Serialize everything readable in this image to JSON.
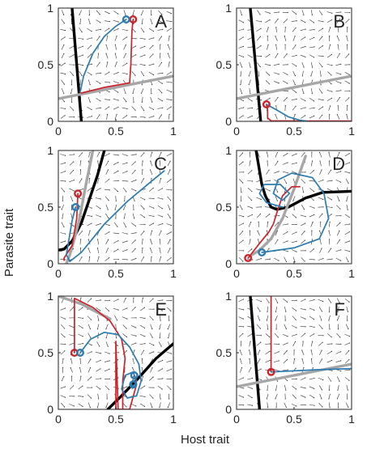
{
  "figure": {
    "xlabel": "Host trait",
    "ylabel": "Parasite trait"
  },
  "colors": {
    "host_isocline": "#000000",
    "parasite_isocline": "#a6a6a6",
    "red_trajectory": "#cc2229",
    "blue_trajectory": "#2a7bb0",
    "arrows": "#333333",
    "frame": "#222222"
  },
  "chart_data": [
    {
      "type": "line",
      "panel": "A",
      "xlim": [
        0,
        1
      ],
      "ylim": [
        0,
        1
      ],
      "xticks": [
        0,
        0.5,
        1
      ],
      "yticks": [
        0,
        0.5,
        1
      ],
      "xtick_labels": [
        "0",
        "0.5",
        "1"
      ],
      "ytick_labels": [
        "0",
        "0.5",
        "1"
      ],
      "show_xticks": true,
      "show_yticks": true,
      "grid": false,
      "field": [
        {
          "x": 0.05,
          "y": 0.05,
          "dx": 0.6,
          "dy": 0.8
        },
        {
          "x": 0.5,
          "y": 0.5,
          "dx": -1,
          "dy": 0.3
        },
        {
          "x": 0.85,
          "y": 0.85,
          "dx": -1,
          "dy": 0.0
        }
      ],
      "curves": [
        {
          "role": "host_isocline",
          "points": [
            [
              0.12,
              1.0
            ],
            [
              0.2,
              0.0
            ]
          ]
        },
        {
          "role": "parasite_isocline",
          "points": [
            [
              0.0,
              0.2
            ],
            [
              1.0,
              0.4
            ]
          ]
        },
        {
          "role": "red_trajectory",
          "points": [
            [
              0.65,
              0.9
            ],
            [
              0.64,
              0.8
            ],
            [
              0.63,
              0.5
            ],
            [
              0.62,
              0.34
            ],
            [
              0.4,
              0.3
            ],
            [
              0.2,
              0.25
            ]
          ]
        },
        {
          "role": "blue_trajectory",
          "points": [
            [
              0.59,
              0.9
            ],
            [
              0.5,
              0.84
            ],
            [
              0.4,
              0.75
            ],
            [
              0.3,
              0.6
            ],
            [
              0.22,
              0.4
            ],
            [
              0.19,
              0.26
            ]
          ]
        }
      ],
      "start_points": [
        {
          "role": "red_trajectory",
          "x": 0.65,
          "y": 0.9
        },
        {
          "role": "blue_trajectory",
          "x": 0.59,
          "y": 0.9
        }
      ]
    },
    {
      "type": "line",
      "panel": "B",
      "xlim": [
        0,
        1
      ],
      "ylim": [
        0,
        1
      ],
      "xticks": [
        0,
        0.5,
        1
      ],
      "yticks": [
        0,
        0.5,
        1
      ],
      "xtick_labels": [
        "0",
        "0.5",
        "1"
      ],
      "ytick_labels": [
        "0",
        "0.5",
        "1"
      ],
      "show_xticks": true,
      "show_yticks": true,
      "grid": false,
      "curves": [
        {
          "role": "host_isocline",
          "points": [
            [
              0.12,
              1.0
            ],
            [
              0.21,
              0.0
            ]
          ]
        },
        {
          "role": "parasite_isocline",
          "points": [
            [
              0.0,
              0.2
            ],
            [
              1.0,
              0.4
            ]
          ]
        },
        {
          "role": "red_trajectory",
          "points": [
            [
              0.26,
              0.15
            ],
            [
              0.27,
              0.1
            ],
            [
              0.27,
              0.03
            ],
            [
              0.3,
              0.005
            ],
            [
              0.6,
              0.003
            ],
            [
              1.0,
              0.003
            ]
          ]
        },
        {
          "role": "blue_trajectory",
          "points": [
            [
              0.26,
              0.15
            ],
            [
              0.35,
              0.1
            ],
            [
              0.45,
              0.04
            ],
            [
              0.55,
              0.01
            ],
            [
              0.62,
              0.0
            ]
          ]
        }
      ],
      "start_points": [
        {
          "role": "red_trajectory",
          "x": 0.26,
          "y": 0.15
        }
      ]
    },
    {
      "type": "line",
      "panel": "C",
      "xlim": [
        0,
        1
      ],
      "ylim": [
        0,
        1
      ],
      "xticks": [
        0,
        0.5,
        1
      ],
      "yticks": [
        0,
        0.5,
        1
      ],
      "xtick_labels": [
        "0",
        "0.5",
        "1"
      ],
      "ytick_labels": [
        "0",
        "0.5",
        "1"
      ],
      "show_xticks": true,
      "show_yticks": true,
      "grid": false,
      "curves": [
        {
          "role": "host_isocline",
          "points": [
            [
              0.0,
              0.12
            ],
            [
              0.05,
              0.13
            ],
            [
              0.12,
              0.2
            ],
            [
              0.2,
              0.36
            ],
            [
              0.28,
              0.6
            ],
            [
              0.34,
              0.78
            ],
            [
              0.4,
              1.0
            ]
          ]
        },
        {
          "role": "parasite_isocline",
          "points": [
            [
              0.07,
              0.0
            ],
            [
              0.1,
              0.08
            ],
            [
              0.14,
              0.22
            ],
            [
              0.18,
              0.38
            ],
            [
              0.24,
              0.7
            ],
            [
              0.28,
              0.9
            ],
            [
              0.3,
              1.0
            ]
          ]
        },
        {
          "role": "red_trajectory",
          "points": [
            [
              0.17,
              0.62
            ],
            [
              0.16,
              0.4
            ],
            [
              0.12,
              0.16
            ],
            [
              0.05,
              0.05
            ],
            [
              0.05,
              0.03
            ]
          ]
        },
        {
          "role": "blue_trajectory",
          "points": [
            [
              0.15,
              0.5
            ],
            [
              0.12,
              0.38
            ],
            [
              0.09,
              0.2
            ],
            [
              0.07,
              0.08
            ],
            [
              0.1,
              0.02
            ],
            [
              0.2,
              0.1
            ],
            [
              0.4,
              0.35
            ],
            [
              0.6,
              0.55
            ],
            [
              0.8,
              0.72
            ],
            [
              0.92,
              0.82
            ]
          ]
        }
      ],
      "start_points": [
        {
          "role": "red_trajectory",
          "x": 0.17,
          "y": 0.62
        },
        {
          "role": "blue_trajectory",
          "x": 0.15,
          "y": 0.5
        }
      ]
    },
    {
      "type": "line",
      "panel": "D",
      "xlim": [
        0,
        1
      ],
      "ylim": [
        0,
        1
      ],
      "xticks": [
        0,
        0.5,
        1
      ],
      "yticks": [
        0,
        0.5,
        1
      ],
      "xtick_labels": [
        "0",
        "0.5",
        "1"
      ],
      "ytick_labels": [
        "0",
        "0.5",
        "1"
      ],
      "show_xticks": true,
      "show_yticks": true,
      "grid": false,
      "curves": [
        {
          "role": "host_isocline",
          "points": [
            [
              0.17,
              1.0
            ],
            [
              0.22,
              0.7
            ],
            [
              0.25,
              0.6
            ],
            [
              0.3,
              0.5
            ],
            [
              0.35,
              0.48
            ],
            [
              0.45,
              0.5
            ],
            [
              0.6,
              0.58
            ],
            [
              0.75,
              0.63
            ],
            [
              1.0,
              0.64
            ]
          ]
        },
        {
          "role": "parasite_isocline",
          "points": [
            [
              0.12,
              0.07
            ],
            [
              0.2,
              0.12
            ],
            [
              0.3,
              0.22
            ],
            [
              0.4,
              0.4
            ],
            [
              0.5,
              0.66
            ],
            [
              0.6,
              0.95
            ]
          ]
        },
        {
          "role": "red_trajectory",
          "points": [
            [
              0.1,
              0.05
            ],
            [
              0.2,
              0.18
            ],
            [
              0.28,
              0.28
            ],
            [
              0.32,
              0.35
            ],
            [
              0.35,
              0.45
            ],
            [
              0.4,
              0.6
            ],
            [
              0.48,
              0.68
            ],
            [
              0.55,
              0.68
            ]
          ]
        },
        {
          "role": "blue_trajectory",
          "points": [
            [
              0.22,
              0.1
            ],
            [
              0.5,
              0.14
            ],
            [
              0.72,
              0.22
            ],
            [
              0.8,
              0.4
            ],
            [
              0.76,
              0.62
            ],
            [
              0.66,
              0.76
            ],
            [
              0.48,
              0.8
            ],
            [
              0.36,
              0.74
            ],
            [
              0.32,
              0.62
            ],
            [
              0.4,
              0.56
            ],
            [
              0.46,
              0.62
            ],
            [
              0.38,
              0.7
            ],
            [
              0.24,
              0.7
            ],
            [
              0.2,
              0.62
            ],
            [
              0.26,
              0.54
            ],
            [
              0.4,
              0.5
            ]
          ]
        }
      ],
      "start_points": [
        {
          "role": "red_trajectory",
          "x": 0.1,
          "y": 0.05
        },
        {
          "role": "blue_trajectory",
          "x": 0.22,
          "y": 0.1
        }
      ]
    },
    {
      "type": "line",
      "panel": "E",
      "xlim": [
        0,
        1
      ],
      "ylim": [
        0,
        1
      ],
      "xticks": [
        0,
        0.5,
        1
      ],
      "yticks": [
        0,
        0.5,
        1
      ],
      "xtick_labels": [
        "0",
        "0.5",
        "1"
      ],
      "ytick_labels": [
        "0",
        "0.5",
        "1"
      ],
      "show_xticks": true,
      "show_yticks": true,
      "grid": false,
      "curves": [
        {
          "role": "host_isocline",
          "points": [
            [
              0.43,
              0.0
            ],
            [
              0.55,
              0.12
            ],
            [
              0.7,
              0.28
            ],
            [
              0.85,
              0.45
            ],
            [
              1.0,
              0.58
            ]
          ]
        },
        {
          "role": "parasite_isocline",
          "points": [
            [
              0.0,
              1.0
            ],
            [
              0.2,
              0.93
            ],
            [
              0.35,
              0.85
            ],
            [
              0.45,
              0.8
            ]
          ]
        },
        {
          "role": "red_trajectory",
          "points": [
            [
              0.14,
              0.5
            ],
            [
              0.14,
              0.98
            ],
            [
              0.3,
              0.9
            ],
            [
              0.45,
              0.78
            ],
            [
              0.55,
              0.62
            ],
            [
              0.58,
              0.45
            ],
            [
              0.56,
              0.25
            ],
            [
              0.56,
              0.05
            ],
            [
              0.56,
              0.0
            ],
            [
              0.5,
              0.0
            ],
            [
              0.5,
              0.3
            ],
            [
              0.5,
              0.6
            ],
            [
              0.52,
              0.0
            ],
            [
              0.62,
              0.0
            ],
            [
              0.68,
              0.22
            ],
            [
              0.67,
              0.28
            ],
            [
              0.66,
              0.3
            ]
          ]
        },
        {
          "role": "blue_trajectory",
          "points": [
            [
              0.19,
              0.5
            ],
            [
              0.28,
              0.62
            ],
            [
              0.4,
              0.68
            ],
            [
              0.52,
              0.66
            ],
            [
              0.62,
              0.55
            ],
            [
              0.7,
              0.4
            ],
            [
              0.72,
              0.25
            ],
            [
              0.68,
              0.12
            ],
            [
              0.6,
              0.1
            ],
            [
              0.55,
              0.18
            ],
            [
              0.58,
              0.3
            ],
            [
              0.65,
              0.33
            ],
            [
              0.68,
              0.25
            ],
            [
              0.66,
              0.2
            ],
            [
              0.63,
              0.22
            ],
            [
              0.65,
              0.26
            ]
          ]
        }
      ],
      "start_points": [
        {
          "role": "red_trajectory",
          "x": 0.14,
          "y": 0.5
        },
        {
          "role": "blue_trajectory",
          "x": 0.19,
          "y": 0.5
        },
        {
          "role": "blue_trajectory",
          "x": 0.66,
          "y": 0.3
        },
        {
          "role": "blue_trajectory",
          "x": 0.65,
          "y": 0.22
        }
      ]
    },
    {
      "type": "line",
      "panel": "F",
      "xlim": [
        0,
        1
      ],
      "ylim": [
        0,
        1
      ],
      "xticks": [
        0,
        0.5,
        1
      ],
      "yticks": [
        0,
        0.5,
        1
      ],
      "xtick_labels": [
        "0",
        "0.5",
        "1"
      ],
      "ytick_labels": [
        "0",
        "0.5",
        "1"
      ],
      "show_xticks": true,
      "show_yticks": true,
      "grid": false,
      "curves": [
        {
          "role": "host_isocline",
          "points": [
            [
              0.12,
              1.0
            ],
            [
              0.2,
              0.0
            ]
          ]
        },
        {
          "role": "parasite_isocline",
          "points": [
            [
              0.0,
              0.2
            ],
            [
              1.0,
              0.4
            ]
          ]
        },
        {
          "role": "red_trajectory",
          "points": [
            [
              0.3,
              1.0
            ],
            [
              0.3,
              0.6
            ],
            [
              0.3,
              0.33
            ]
          ]
        },
        {
          "role": "blue_trajectory",
          "points": [
            [
              0.3,
              0.33
            ],
            [
              0.5,
              0.34
            ],
            [
              0.7,
              0.35
            ],
            [
              1.0,
              0.36
            ]
          ]
        }
      ],
      "start_points": [
        {
          "role": "red_trajectory",
          "x": 0.3,
          "y": 0.33
        }
      ]
    }
  ]
}
